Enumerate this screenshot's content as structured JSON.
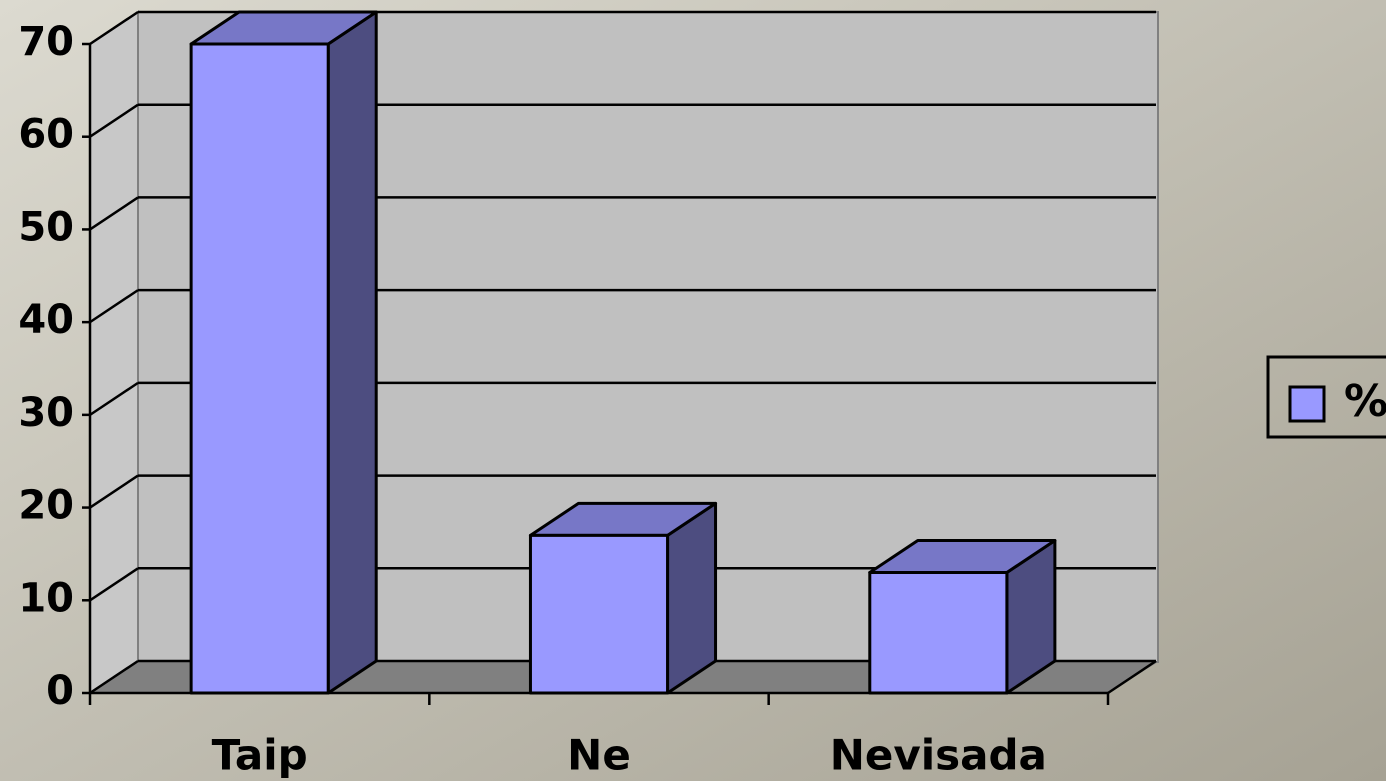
{
  "chart_data": {
    "type": "bar",
    "categories": [
      "Taip",
      "Ne",
      "Nevisada"
    ],
    "series": [
      {
        "name": "%",
        "color": "#9999ff",
        "values": [
          70,
          17,
          13
        ]
      }
    ],
    "ylim": [
      0,
      70
    ],
    "yticks": [
      0,
      10,
      20,
      30,
      40,
      50,
      60,
      70
    ],
    "grid": true,
    "legend": "right"
  }
}
